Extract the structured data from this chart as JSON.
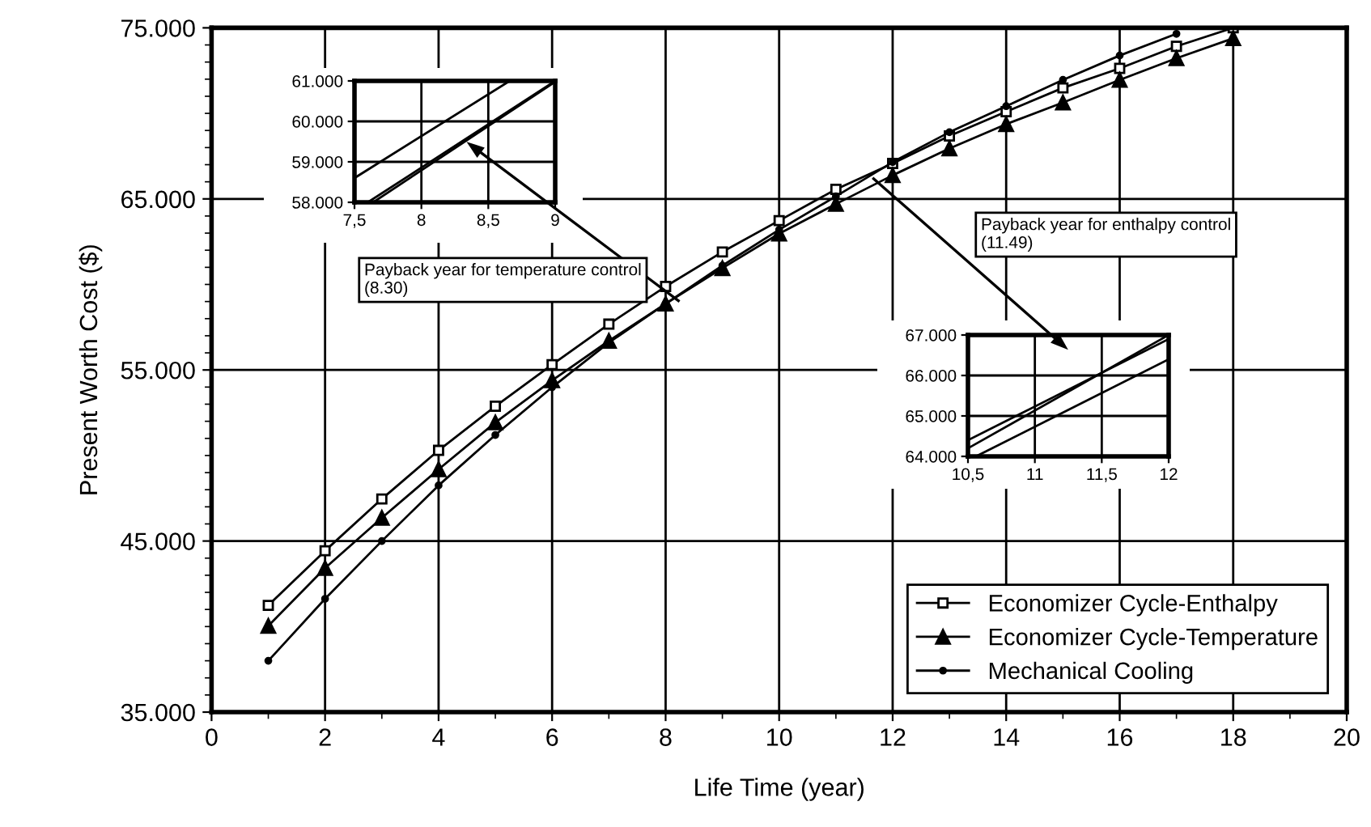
{
  "chart_data": [
    {
      "type": "line",
      "xlabel": "Life Time (year)",
      "ylabel": "Present Worth Cost ($)",
      "xlim": [
        0,
        20
      ],
      "xticks": [
        0,
        2,
        4,
        6,
        8,
        10,
        12,
        14,
        16,
        18,
        20
      ],
      "ylim": [
        35000,
        75000
      ],
      "yticks": [
        {
          "value": 35000,
          "label": "35.000"
        },
        {
          "value": 45000,
          "label": "45.000"
        },
        {
          "value": 55000,
          "label": "55.000"
        },
        {
          "value": 65000,
          "label": "65.000"
        },
        {
          "value": 75000,
          "label": "75.000"
        }
      ],
      "grid": true,
      "legend": "bottom right",
      "annotations": [
        "Payback year for temperature control (8.30)",
        "Payback year for enthalpy control (11.49)"
      ],
      "series": [
        {
          "name": "Economizer Cycle-Enthalpy",
          "color": "#000000",
          "marker": "square",
          "x": [
            1,
            2,
            3,
            4,
            5,
            6,
            7,
            8,
            9,
            10,
            11,
            12,
            13,
            14,
            15,
            16,
            17,
            18
          ],
          "values": [
            41240,
            44430,
            47460,
            50300,
            52880,
            55310,
            57680,
            59880,
            61900,
            63730,
            65560,
            67070,
            68680,
            70100,
            71490,
            72630,
            73920,
            75000
          ]
        },
        {
          "name": "Economizer Cycle-Temperature",
          "color": "#000000",
          "marker": "triangle",
          "x": [
            1,
            2,
            3,
            4,
            5,
            6,
            7,
            8,
            9,
            10,
            11,
            12,
            13,
            14,
            15,
            16,
            17,
            18
          ],
          "values": [
            40040,
            43420,
            46350,
            49190,
            51930,
            54390,
            56700,
            58870,
            60950,
            62970,
            64700,
            66380,
            67950,
            69370,
            70630,
            71960,
            73220,
            74390
          ]
        },
        {
          "name": "Mechanical Cooling",
          "color": "#000000",
          "marker": "circle",
          "x": [
            1,
            2,
            3,
            4,
            5,
            6,
            7,
            8,
            9,
            10,
            11,
            12,
            13,
            14,
            15,
            16,
            17
          ],
          "values": [
            38000,
            41620,
            45000,
            48250,
            51200,
            53990,
            56600,
            58870,
            61100,
            63200,
            65150,
            67150,
            68900,
            70420,
            71960,
            73380,
            74650
          ]
        }
      ]
    },
    {
      "type": "line",
      "xlim": [
        7.5,
        9
      ],
      "xticks": [
        {
          "value": 7.5,
          "label": "7,5"
        },
        8,
        {
          "value": 8.5,
          "label": "8,5"
        },
        9
      ],
      "ylim": [
        58000,
        61000
      ],
      "yticks": [
        {
          "value": 58000,
          "label": "58.000"
        },
        {
          "value": 59000,
          "label": "59.000"
        },
        {
          "value": 60000,
          "label": "60.000"
        },
        {
          "value": 61000,
          "label": "61.000"
        }
      ],
      "grid": true,
      "series": [
        {
          "color": "#000000",
          "x": [
            7.5,
            8.66
          ],
          "values": [
            58600,
            61000
          ]
        },
        {
          "color": "#000000",
          "x": [
            7.6,
            9
          ],
          "values": [
            58000,
            61000
          ]
        },
        {
          "color": "#000000",
          "x": [
            7.64,
            9
          ],
          "values": [
            58000,
            60980
          ]
        }
      ]
    },
    {
      "type": "line",
      "xlim": [
        10.5,
        12
      ],
      "xticks": [
        {
          "value": 10.5,
          "label": "10,5"
        },
        11,
        {
          "value": 11.5,
          "label": "11,5"
        },
        12
      ],
      "ylim": [
        64000,
        67000
      ],
      "yticks": [
        {
          "value": 64000,
          "label": "64.000"
        },
        {
          "value": 65000,
          "label": "65.000"
        },
        {
          "value": 66000,
          "label": "66.000"
        },
        {
          "value": 67000,
          "label": "67.000"
        }
      ],
      "grid": true,
      "series": [
        {
          "color": "#000000",
          "x": [
            10.5,
            12
          ],
          "values": [
            64400,
            66900
          ]
        },
        {
          "color": "#000000",
          "x": [
            10.56,
            12
          ],
          "values": [
            64000,
            66400
          ]
        },
        {
          "color": "#000000",
          "x": [
            10.5,
            12
          ],
          "values": [
            64200,
            67000
          ]
        }
      ]
    }
  ]
}
